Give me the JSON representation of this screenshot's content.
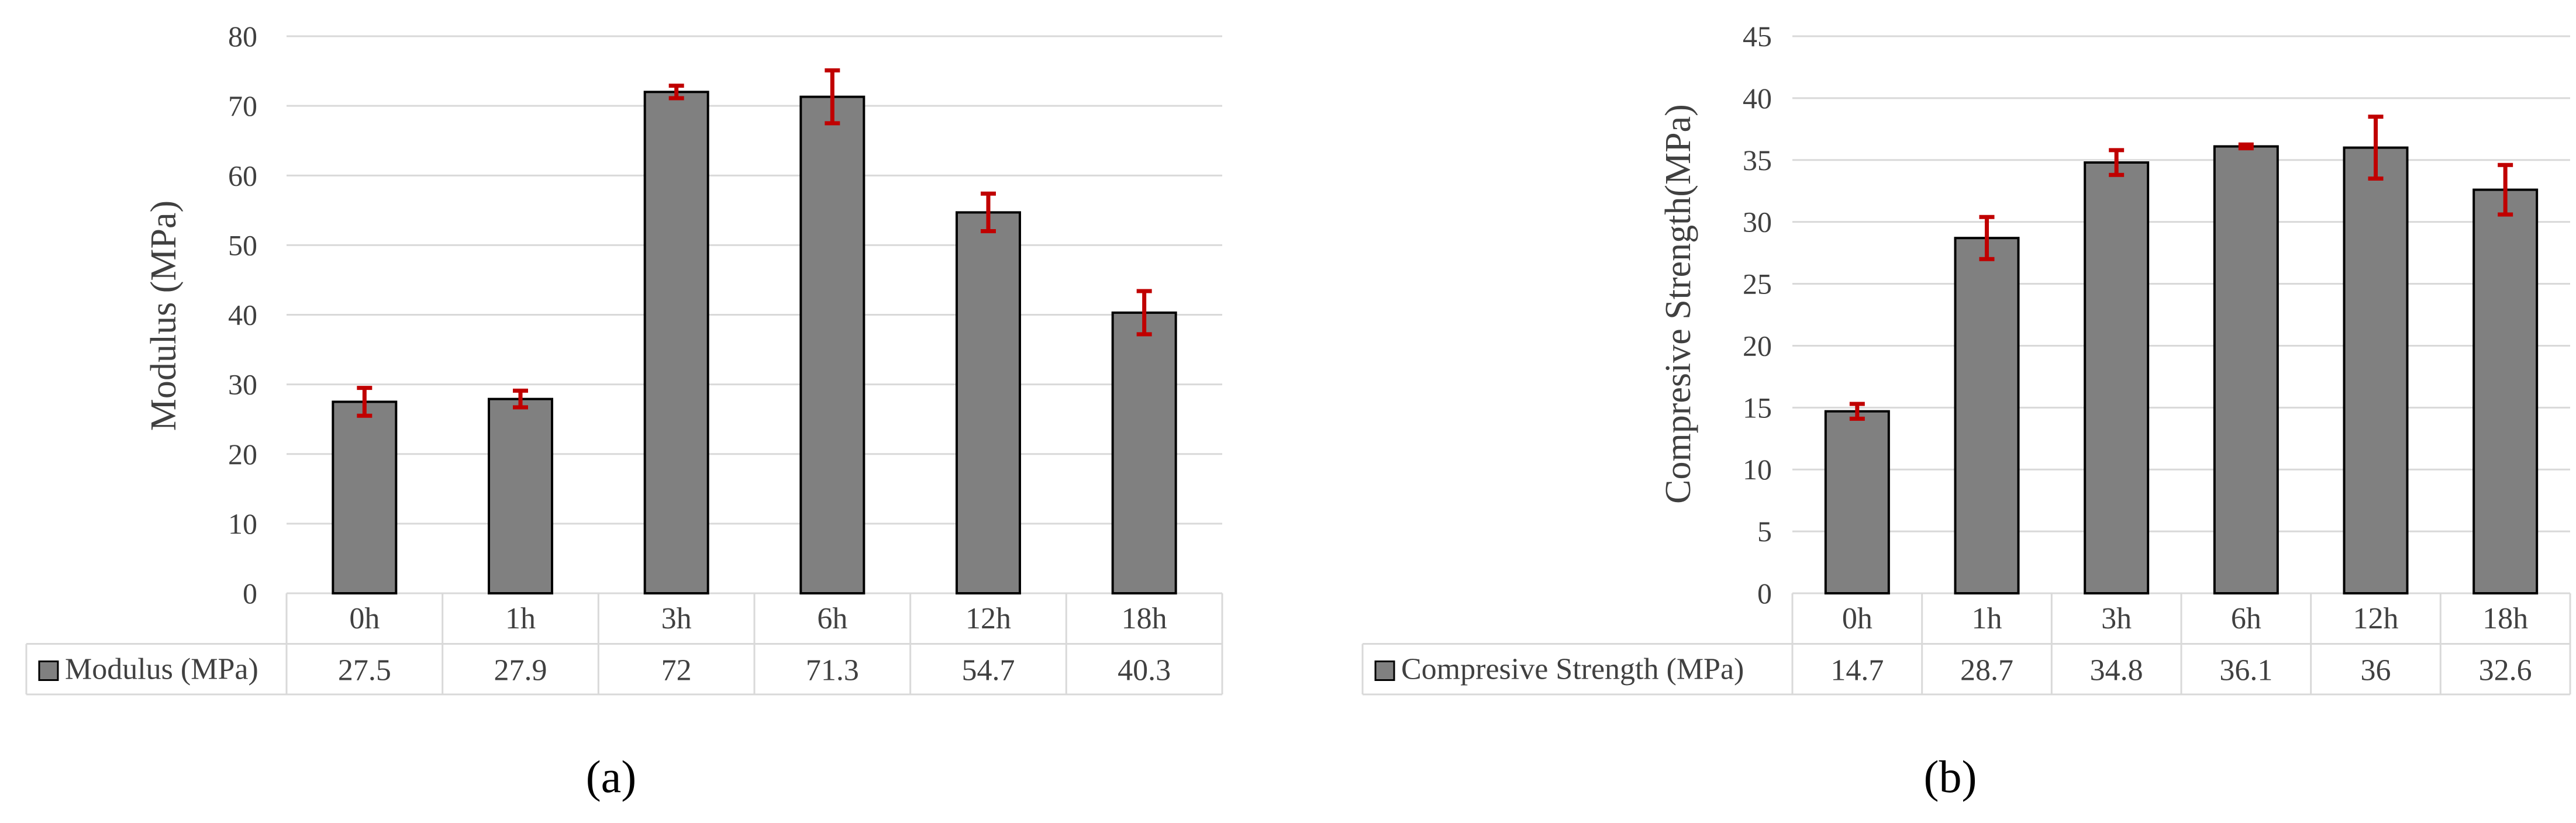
{
  "chart_data": [
    {
      "type": "bar",
      "ylabel": "Modulus  (MPa)",
      "ylim": [
        0,
        80
      ],
      "ytick_step": 10,
      "grid": true,
      "legend": "table-below",
      "categories": [
        "0h",
        "1h",
        "3h",
        "6h",
        "12h",
        "18h"
      ],
      "series": [
        {
          "name": "Modulus (MPa)",
          "values": [
            27.5,
            27.9,
            72,
            71.3,
            54.7,
            40.3
          ],
          "errors": [
            2.0,
            1.2,
            0.9,
            3.8,
            2.7,
            3.1
          ]
        }
      ],
      "caption": "(a)"
    },
    {
      "type": "bar",
      "ylabel": "Compresive  Strength(MPa)",
      "ylim": [
        0,
        45
      ],
      "ytick_step": 5,
      "grid": true,
      "legend": "table-below",
      "categories": [
        "0h",
        "1h",
        "3h",
        "6h",
        "12h",
        "18h"
      ],
      "series": [
        {
          "name": "Compresive Strength (MPa)",
          "values": [
            14.7,
            28.7,
            34.8,
            36.1,
            36,
            32.6
          ],
          "errors": [
            0.6,
            1.7,
            1.0,
            0.15,
            2.5,
            2.0
          ]
        }
      ],
      "caption": "(b)"
    }
  ],
  "colors": {
    "bar": "#808080",
    "bar_edge": "#000000",
    "error_bar": "#c00000",
    "grid": "#d9d9d9"
  },
  "display": {
    "a": {
      "values": [
        "27.5",
        "27.9",
        "72",
        "71.3",
        "54.7",
        "40.3"
      ]
    },
    "b": {
      "values": [
        "14.7",
        "28.7",
        "34.8",
        "36.1",
        "36",
        "32.6"
      ]
    }
  }
}
